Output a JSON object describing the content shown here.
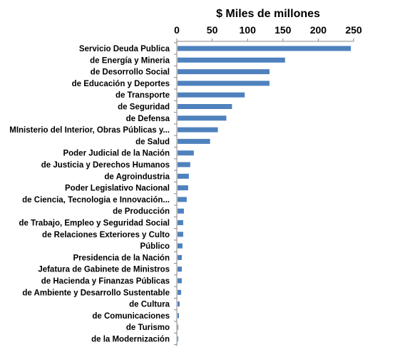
{
  "chart_data": {
    "type": "bar",
    "orientation": "horizontal",
    "title": "",
    "xlabel": "$ Miles de millones",
    "ylabel": "",
    "xlim": [
      0,
      250
    ],
    "xticks": [
      0,
      50,
      100,
      150,
      200,
      250
    ],
    "xtick_labels": [
      "0",
      "50",
      "100",
      "150",
      "200",
      "250"
    ],
    "x_axis_position": "top",
    "grid": false,
    "legend": "none",
    "bar_color": "#4F81BD",
    "categories": [
      "Servicio Deuda Publica",
      "de Energía y Mineria",
      "de Desorrollo Social",
      "de Educación y Deportes",
      "de Transporte",
      "de Seguridad",
      "de Defensa",
      "MInisterio del Interior, Obras Públicas y...",
      "de Salud",
      "Poder Judicial de la Nación",
      "de Justicia y Derechos Humanos",
      "de Agroindustria",
      "Poder Legislativo Nacional",
      "de Ciencia, Tecnologia e Innovación...",
      "de Producción",
      "de Trabajo, Empleo y Seguridad Social",
      "de Relaciones Exteriores y Culto",
      "Público",
      "Presidencia de la Nación",
      "Jefatura de Gabinete de Ministros",
      "de Hacienda y Finanzas Públicas",
      "de Ambiente y Desarrollo Sustentable",
      "de Cultura",
      "de Comunicaciones",
      "de Turismo",
      "de la Modernización"
    ],
    "values": [
      246,
      153,
      131,
      131,
      96,
      78,
      70,
      58,
      47,
      24,
      19,
      17,
      16,
      14,
      10,
      9,
      9,
      8,
      7,
      7,
      7,
      6,
      4,
      3,
      2,
      2
    ]
  }
}
